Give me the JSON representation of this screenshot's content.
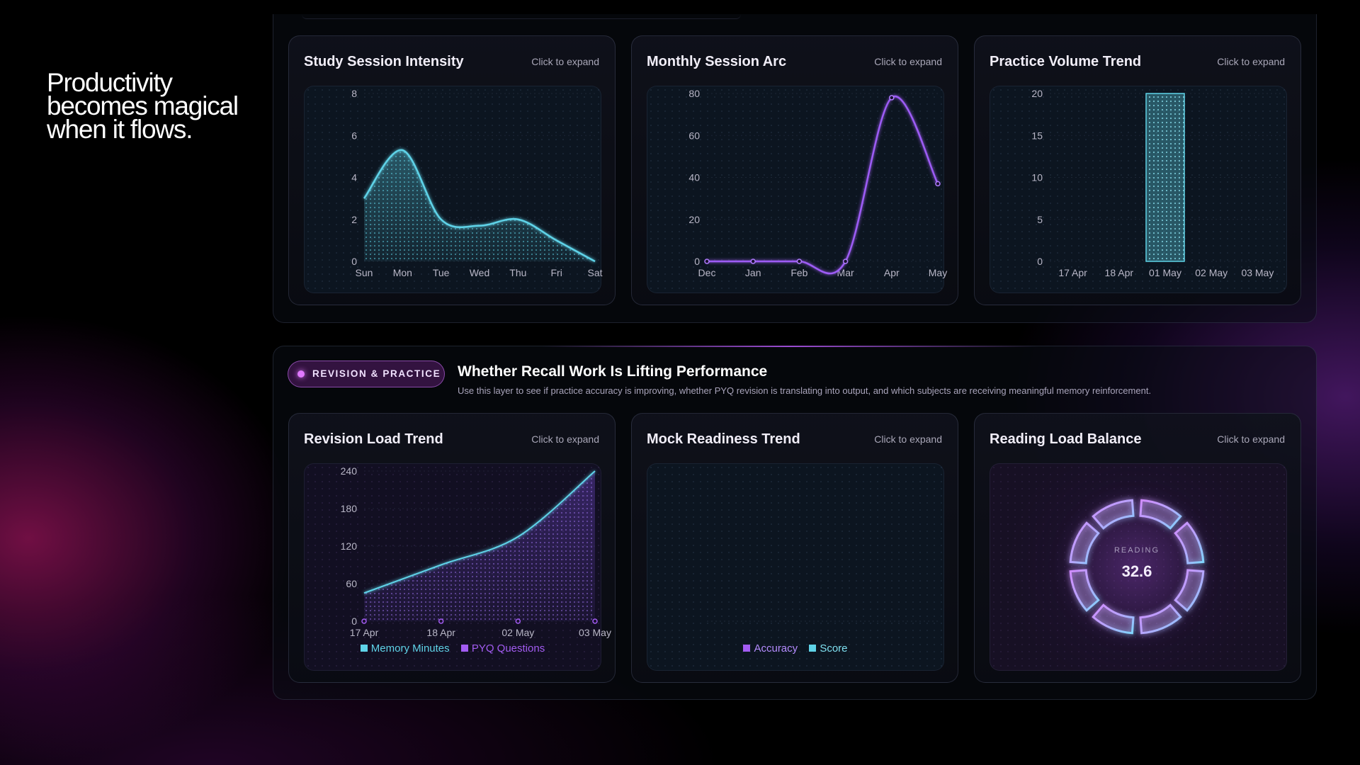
{
  "tagline": "Productivity becomes magical when it flows.",
  "common": {
    "expand_label": "Click to expand"
  },
  "revision_section": {
    "badge": "REVISION & PRACTICE",
    "title": "Whether Recall Work Is Lifting Performance",
    "subtitle": "Use this layer to see if practice accuracy is improving, whether PYQ revision is translating into output, and which subjects are receiving meaningful memory reinforcement."
  },
  "colors": {
    "cyan": "#5fd3e8",
    "purple": "#a35cf2",
    "violet": "#b58cff",
    "accent_pink": "#e079ff"
  },
  "cards": {
    "study": {
      "title": "Study Session Intensity",
      "icon": "none"
    },
    "monthly": {
      "title": "Monthly Session Arc"
    },
    "practice": {
      "title": "Practice Volume Trend"
    },
    "revision": {
      "title": "Revision Load Trend"
    },
    "mock": {
      "title": "Mock Readiness Trend"
    },
    "reading": {
      "title": "Reading Load Balance",
      "center_label": "READING",
      "center_value": "32.6"
    }
  },
  "chart_data": [
    {
      "id": "study",
      "type": "area",
      "x": [
        "Sun",
        "Mon",
        "Tue",
        "Wed",
        "Thu",
        "Fri",
        "Sat"
      ],
      "series": [
        {
          "values": [
            3.0,
            5.3,
            2.0,
            1.7,
            2.0,
            1.0,
            0.0
          ]
        }
      ],
      "ylim": [
        0,
        8
      ],
      "yticks": [
        0,
        2,
        4,
        6,
        8
      ],
      "grid": true
    },
    {
      "id": "monthly",
      "type": "line",
      "x": [
        "Dec",
        "Jan",
        "Feb",
        "Mar",
        "Apr",
        "May"
      ],
      "series": [
        {
          "values": [
            0,
            0,
            0,
            0,
            78,
            37
          ]
        }
      ],
      "ylim": [
        0,
        80
      ],
      "yticks": [
        0,
        20,
        40,
        60,
        80
      ],
      "grid": true
    },
    {
      "id": "practice",
      "type": "bar",
      "categories": [
        "17 Apr",
        "18 Apr",
        "01 May",
        "02 May",
        "03 May"
      ],
      "values": [
        0,
        0,
        20,
        0,
        0
      ],
      "ylim": [
        0,
        20
      ],
      "yticks": [
        0,
        5,
        10,
        15,
        20
      ],
      "grid": true
    },
    {
      "id": "revision",
      "type": "area",
      "x": [
        "17 Apr",
        "18 Apr",
        "02 May",
        "03 May"
      ],
      "series": [
        {
          "name": "Memory Minutes",
          "values": [
            45,
            90,
            135,
            240
          ]
        },
        {
          "name": "PYQ Questions",
          "values": [
            0,
            0,
            0,
            0
          ]
        }
      ],
      "ylim": [
        0,
        240
      ],
      "yticks": [
        0,
        60,
        120,
        180,
        240
      ],
      "legend": "bottom",
      "grid": true
    },
    {
      "id": "mock",
      "type": "line",
      "x": [],
      "series": [
        {
          "name": "Accuracy",
          "values": []
        },
        {
          "name": "Score",
          "values": []
        }
      ],
      "legend": "bottom",
      "grid": true
    },
    {
      "id": "reading",
      "type": "pie",
      "segments": 8,
      "legend": "none"
    }
  ]
}
